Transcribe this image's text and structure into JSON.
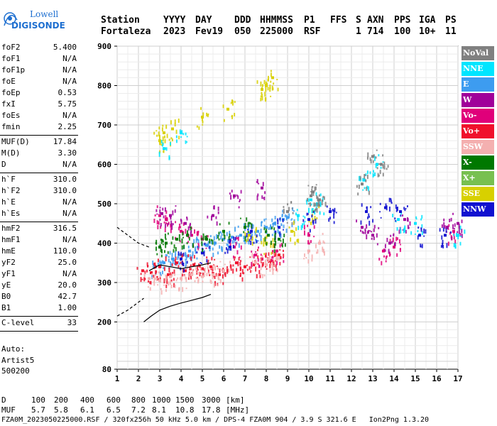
{
  "logo": {
    "line1": "Lowell",
    "line2": "DIGISONDE",
    "accent": "#1e6fd0"
  },
  "header": {
    "labels": [
      "Station",
      "YYYY",
      "DAY",
      "DDD",
      "HHMMSS",
      "P1",
      "FFS",
      "S",
      "AXN",
      "PPS",
      "IGA",
      "PS"
    ],
    "values": [
      "Fortaleza",
      "2023",
      "Fev19",
      "050",
      "225000",
      "RSF",
      "",
      "1",
      "714",
      "100",
      "10+",
      "11"
    ]
  },
  "params": {
    "group1": [
      {
        "k": "foF2",
        "v": "5.400"
      },
      {
        "k": "foF1",
        "v": "N/A"
      },
      {
        "k": "foF1p",
        "v": "N/A"
      },
      {
        "k": "foE",
        "v": "N/A"
      },
      {
        "k": "foEp",
        "v": "0.53"
      },
      {
        "k": "fxI",
        "v": "5.75"
      },
      {
        "k": "foEs",
        "v": "N/A"
      },
      {
        "k": "fmin",
        "v": "2.25"
      }
    ],
    "group2": [
      {
        "k": "MUF(D)",
        "v": "17.84"
      },
      {
        "k": "M(D)",
        "v": "3.30"
      },
      {
        "k": "D",
        "v": "N/A"
      }
    ],
    "group3": [
      {
        "k": "h`F",
        "v": "310.0"
      },
      {
        "k": "h`F2",
        "v": "310.0"
      },
      {
        "k": "h`E",
        "v": "N/A"
      },
      {
        "k": "h`Es",
        "v": "N/A"
      }
    ],
    "group4": [
      {
        "k": "hmF2",
        "v": "316.5"
      },
      {
        "k": "hmF1",
        "v": "N/A"
      },
      {
        "k": "hmE",
        "v": "110.0"
      },
      {
        "k": "yF2",
        "v": "25.0"
      },
      {
        "k": "yF1",
        "v": "N/A"
      },
      {
        "k": "yE",
        "v": "20.0"
      },
      {
        "k": "B0",
        "v": "42.7"
      },
      {
        "k": "B1",
        "v": "1.00"
      }
    ],
    "group5": [
      {
        "k": "C-level",
        "v": "33"
      }
    ]
  },
  "auto": {
    "l1": "Auto:",
    "l2": "Artist5",
    "l3": "500200"
  },
  "legend": [
    {
      "label": "NoVal",
      "color": "#808080"
    },
    {
      "label": "NNE",
      "color": "#00e5ff"
    },
    {
      "label": "E",
      "color": "#3d9cf0"
    },
    {
      "label": "W",
      "color": "#a0009a"
    },
    {
      "label": "Vo-",
      "color": "#e0007a"
    },
    {
      "label": "Vo+",
      "color": "#f0102c"
    },
    {
      "label": "SSW",
      "color": "#f4b0b0"
    },
    {
      "label": "X-",
      "color": "#007800"
    },
    {
      "label": "X+",
      "color": "#78c050"
    },
    {
      "label": "SSE",
      "color": "#d8d000"
    },
    {
      "label": "NNW",
      "color": "#1010d0"
    }
  ],
  "footer": {
    "d_label": "D",
    "d_values": [
      "100",
      "200",
      "400",
      "600",
      "800",
      "1000",
      "1500",
      "3000",
      "[km]"
    ],
    "muf_label": "MUF",
    "muf_values": [
      "5.7",
      "5.8",
      "6.1",
      "6.5",
      "7.2",
      "8.1",
      "10.8",
      "17.8",
      "[MHz]"
    ],
    "bottom": "FZA0M_2023050225000.RSF / 320fx256h 50 kHz 5.0 km / DPS-4 FZA0M 904 / 3.9 S 321.6 E   Ion2Png 1.3.20"
  },
  "chart_data": {
    "type": "scatter",
    "xlim": [
      1,
      17
    ],
    "ylim": [
      80,
      900
    ],
    "xticks": [
      "1",
      "2",
      "3",
      "4",
      "5",
      "6",
      "7",
      "8",
      "9",
      "10",
      "11",
      "12",
      "13",
      "14",
      "15",
      "16",
      "17"
    ],
    "yticks": [
      "80",
      "200",
      "300",
      "400",
      "500",
      "600",
      "700",
      "800",
      "900"
    ],
    "grid": true,
    "clusters": [
      {
        "name": "main trace",
        "color": "#3d9cf0",
        "points": [
          [
            2.8,
            340
          ],
          [
            3.2,
            350
          ],
          [
            3.6,
            360
          ],
          [
            4.0,
            370
          ],
          [
            4.4,
            380
          ],
          [
            4.8,
            390
          ],
          [
            5.2,
            395
          ],
          [
            5.6,
            400
          ],
          [
            6.0,
            410
          ],
          [
            6.4,
            415
          ],
          [
            6.8,
            420
          ],
          [
            7.2,
            425
          ],
          [
            7.6,
            430
          ],
          [
            8.0,
            440
          ],
          [
            8.4,
            450
          ],
          [
            8.8,
            460
          ],
          [
            9.0,
            465
          ]
        ]
      },
      {
        "name": "lower red",
        "color": "#f0102c",
        "points": [
          [
            2.2,
            330
          ],
          [
            2.6,
            325
          ],
          [
            3.0,
            340
          ],
          [
            3.4,
            320
          ],
          [
            3.8,
            350
          ],
          [
            4.2,
            330
          ],
          [
            4.6,
            345
          ],
          [
            5.0,
            335
          ],
          [
            5.4,
            340
          ],
          [
            5.8,
            320
          ],
          [
            6.2,
            330
          ],
          [
            6.6,
            350
          ],
          [
            7.0,
            340
          ],
          [
            7.4,
            345
          ],
          [
            7.8,
            360
          ],
          [
            8.2,
            355
          ],
          [
            8.6,
            370
          ]
        ]
      },
      {
        "name": "pink",
        "color": "#f4b0b0",
        "points": [
          [
            2.5,
            310
          ],
          [
            3.0,
            305
          ],
          [
            3.5,
            315
          ],
          [
            4.0,
            310
          ],
          [
            4.5,
            320
          ],
          [
            5.0,
            315
          ],
          [
            5.5,
            320
          ],
          [
            6.0,
            330
          ],
          [
            7.5,
            350
          ],
          [
            8.0,
            345
          ],
          [
            8.5,
            360
          ],
          [
            10.0,
            380
          ],
          [
            10.5,
            400
          ]
        ]
      },
      {
        "name": "magenta",
        "color": "#e0007a",
        "points": [
          [
            3.0,
            470
          ],
          [
            3.3,
            460
          ],
          [
            4.0,
            430
          ],
          [
            4.5,
            420
          ],
          [
            5.0,
            410
          ],
          [
            6.5,
            390
          ],
          [
            7.5,
            370
          ],
          [
            8.5,
            380
          ],
          [
            10.0,
            420
          ],
          [
            13.5,
            380
          ],
          [
            14.0,
            390
          ],
          [
            16.8,
            430
          ]
        ]
      },
      {
        "name": "purple",
        "color": "#a0009a",
        "points": [
          [
            3.1,
            475
          ],
          [
            3.5,
            470
          ],
          [
            4.2,
            450
          ],
          [
            5.5,
            470
          ],
          [
            6.5,
            520
          ],
          [
            7.8,
            540
          ],
          [
            12.5,
            440
          ],
          [
            13.0,
            420
          ],
          [
            13.8,
            400
          ],
          [
            14.5,
            460
          ],
          [
            16.5,
            440
          ],
          [
            17.0,
            450
          ]
        ]
      },
      {
        "name": "yellow",
        "color": "#d8d000",
        "points": [
          [
            3.0,
            660
          ],
          [
            3.2,
            680
          ],
          [
            3.6,
            690
          ],
          [
            5.0,
            720
          ],
          [
            6.2,
            740
          ],
          [
            7.8,
            790
          ],
          [
            8.0,
            800
          ],
          [
            8.3,
            820
          ],
          [
            7.2,
            420
          ],
          [
            8.0,
            400
          ],
          [
            9.2,
            430
          ],
          [
            10.2,
            480
          ]
        ]
      },
      {
        "name": "cyan",
        "color": "#00e5ff",
        "points": [
          [
            3.2,
            640
          ],
          [
            4.0,
            680
          ],
          [
            9.5,
            470
          ],
          [
            10.1,
            510
          ],
          [
            10.4,
            500
          ],
          [
            12.6,
            560
          ],
          [
            13.2,
            600
          ],
          [
            14.2,
            460
          ],
          [
            15.0,
            450
          ],
          [
            17.0,
            420
          ]
        ]
      },
      {
        "name": "navy",
        "color": "#1010d0",
        "points": [
          [
            4.0,
            360
          ],
          [
            5.0,
            375
          ],
          [
            6.3,
            390
          ],
          [
            7.3,
            430
          ],
          [
            8.6,
            440
          ],
          [
            10.0,
            460
          ],
          [
            11.0,
            480
          ],
          [
            12.7,
            480
          ],
          [
            13.6,
            490
          ],
          [
            14.3,
            480
          ],
          [
            15.2,
            420
          ],
          [
            16.4,
            420
          ]
        ]
      },
      {
        "name": "green",
        "color": "#007800",
        "points": [
          [
            3.0,
            390
          ],
          [
            3.3,
            400
          ],
          [
            3.8,
            410
          ],
          [
            4.3,
            420
          ],
          [
            5.2,
            410
          ],
          [
            6.0,
            430
          ],
          [
            7.0,
            440
          ],
          [
            8.1,
            420
          ],
          [
            8.6,
            410
          ]
        ]
      },
      {
        "name": "gray",
        "color": "#808080",
        "points": [
          [
            9.0,
            480
          ],
          [
            10.1,
            520
          ],
          [
            10.2,
            530
          ],
          [
            10.5,
            510
          ],
          [
            12.5,
            550
          ],
          [
            13.0,
            620
          ],
          [
            13.4,
            600
          ]
        ]
      }
    ],
    "curves": [
      {
        "name": "profile",
        "style": "solid",
        "points": [
          [
            2.25,
            200
          ],
          [
            2.6,
            215
          ],
          [
            3.0,
            230
          ],
          [
            3.5,
            240
          ],
          [
            4.0,
            248
          ],
          [
            4.5,
            255
          ],
          [
            5.0,
            262
          ],
          [
            5.4,
            270
          ]
        ]
      },
      {
        "name": "profile-ext",
        "style": "dashed",
        "points": [
          [
            1.0,
            215
          ],
          [
            1.5,
            230
          ],
          [
            2.0,
            250
          ],
          [
            2.25,
            260
          ]
        ]
      },
      {
        "name": "trace-ext",
        "style": "dashed",
        "points": [
          [
            1.0,
            440
          ],
          [
            1.5,
            420
          ],
          [
            2.0,
            400
          ],
          [
            2.5,
            390
          ]
        ]
      },
      {
        "name": "trace-fit",
        "style": "solid",
        "points": [
          [
            2.5,
            330
          ],
          [
            3.0,
            345
          ],
          [
            3.5,
            340
          ],
          [
            4.0,
            335
          ],
          [
            4.5,
            340
          ],
          [
            5.0,
            345
          ],
          [
            5.4,
            350
          ]
        ]
      }
    ]
  }
}
